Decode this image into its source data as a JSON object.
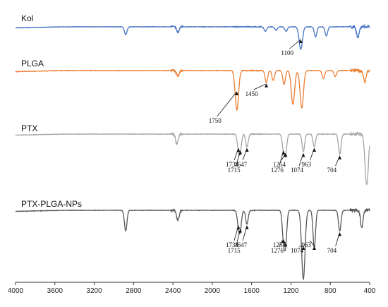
{
  "chart_data": {
    "type": "line",
    "title": "",
    "xlabel": "",
    "ylabel": "",
    "xlim": [
      4000,
      400
    ],
    "x_reversed": true,
    "x_ticks": [
      4000,
      3600,
      3200,
      2800,
      2400,
      2000,
      1600,
      1200,
      800,
      400
    ],
    "x_tick_labels": [
      "4000",
      "3600",
      "3200",
      "2800",
      "2400",
      "2000",
      "1600",
      "1200",
      "800",
      "400"
    ],
    "y_axis_visible": false,
    "grid": false,
    "legend": "none (series labelled directly above each trace)",
    "series": [
      {
        "name": "Kol",
        "color": "#4472c4",
        "peaks": [
          {
            "x": 2880,
            "depth": 0.35
          },
          {
            "x": 2350,
            "depth": 0.25
          },
          {
            "x": 1460,
            "depth": 0.2
          },
          {
            "x": 1350,
            "depth": 0.15
          },
          {
            "x": 1250,
            "depth": 0.2
          },
          {
            "x": 1100,
            "depth": 1.0
          },
          {
            "x": 950,
            "depth": 0.45
          },
          {
            "x": 840,
            "depth": 0.4
          },
          {
            "x": 520,
            "depth": 0.5
          }
        ],
        "annotations": [
          {
            "label": "1100",
            "x": 1100
          }
        ]
      },
      {
        "name": "PLGA",
        "color": "#ed7d31",
        "peaks": [
          {
            "x": 2350,
            "depth": 0.15
          },
          {
            "x": 1750,
            "depth": 1.0
          },
          {
            "x": 1450,
            "depth": 0.3
          },
          {
            "x": 1380,
            "depth": 0.25
          },
          {
            "x": 1270,
            "depth": 0.35
          },
          {
            "x": 1180,
            "depth": 0.85
          },
          {
            "x": 1090,
            "depth": 0.95
          },
          {
            "x": 870,
            "depth": 0.2
          },
          {
            "x": 750,
            "depth": 0.15
          },
          {
            "x": 450,
            "depth": 0.3
          }
        ],
        "annotations": [
          {
            "label": "1750",
            "x": 1750
          },
          {
            "label": "1450",
            "x": 1450
          }
        ]
      },
      {
        "name": "PTX",
        "color": "#a5a5a5",
        "peaks": [
          {
            "x": 2360,
            "depth": 0.2
          },
          {
            "x": 1734,
            "depth": 0.25
          },
          {
            "x": 1715,
            "depth": 0.3
          },
          {
            "x": 1647,
            "depth": 0.25
          },
          {
            "x": 1276,
            "depth": 0.3
          },
          {
            "x": 1254,
            "depth": 0.35
          },
          {
            "x": 1074,
            "depth": 0.35
          },
          {
            "x": 963,
            "depth": 0.25
          },
          {
            "x": 704,
            "depth": 0.4
          },
          {
            "x": 430,
            "depth": 1.0
          }
        ],
        "annotations": [
          {
            "label": "1734",
            "x": 1734
          },
          {
            "label": "1715",
            "x": 1715
          },
          {
            "label": "1647",
            "x": 1647
          },
          {
            "label": "1276",
            "x": 1276
          },
          {
            "label": "1254",
            "x": 1254
          },
          {
            "label": "1074",
            "x": 1074
          },
          {
            "label": "963",
            "x": 963
          },
          {
            "label": "704",
            "x": 704
          }
        ]
      },
      {
        "name": "PTX-PLGA-NPs",
        "color": "#595959",
        "peaks": [
          {
            "x": 2880,
            "depth": 0.3
          },
          {
            "x": 2350,
            "depth": 0.15
          },
          {
            "x": 1734,
            "depth": 0.2
          },
          {
            "x": 1715,
            "depth": 0.25
          },
          {
            "x": 1647,
            "depth": 0.2
          },
          {
            "x": 1276,
            "depth": 0.4
          },
          {
            "x": 1254,
            "depth": 0.45
          },
          {
            "x": 1074,
            "depth": 1.0
          },
          {
            "x": 963,
            "depth": 0.55
          },
          {
            "x": 704,
            "depth": 0.3
          },
          {
            "x": 480,
            "depth": 0.25
          }
        ],
        "annotations": [
          {
            "label": "1734",
            "x": 1734
          },
          {
            "label": "1715",
            "x": 1715
          },
          {
            "label": "1647",
            "x": 1647
          },
          {
            "label": "1276",
            "x": 1276
          },
          {
            "label": "1254",
            "x": 1254
          },
          {
            "label": "1074",
            "x": 1074
          },
          {
            "label": "963",
            "x": 963
          },
          {
            "label": "704",
            "x": 704
          }
        ]
      }
    ]
  }
}
